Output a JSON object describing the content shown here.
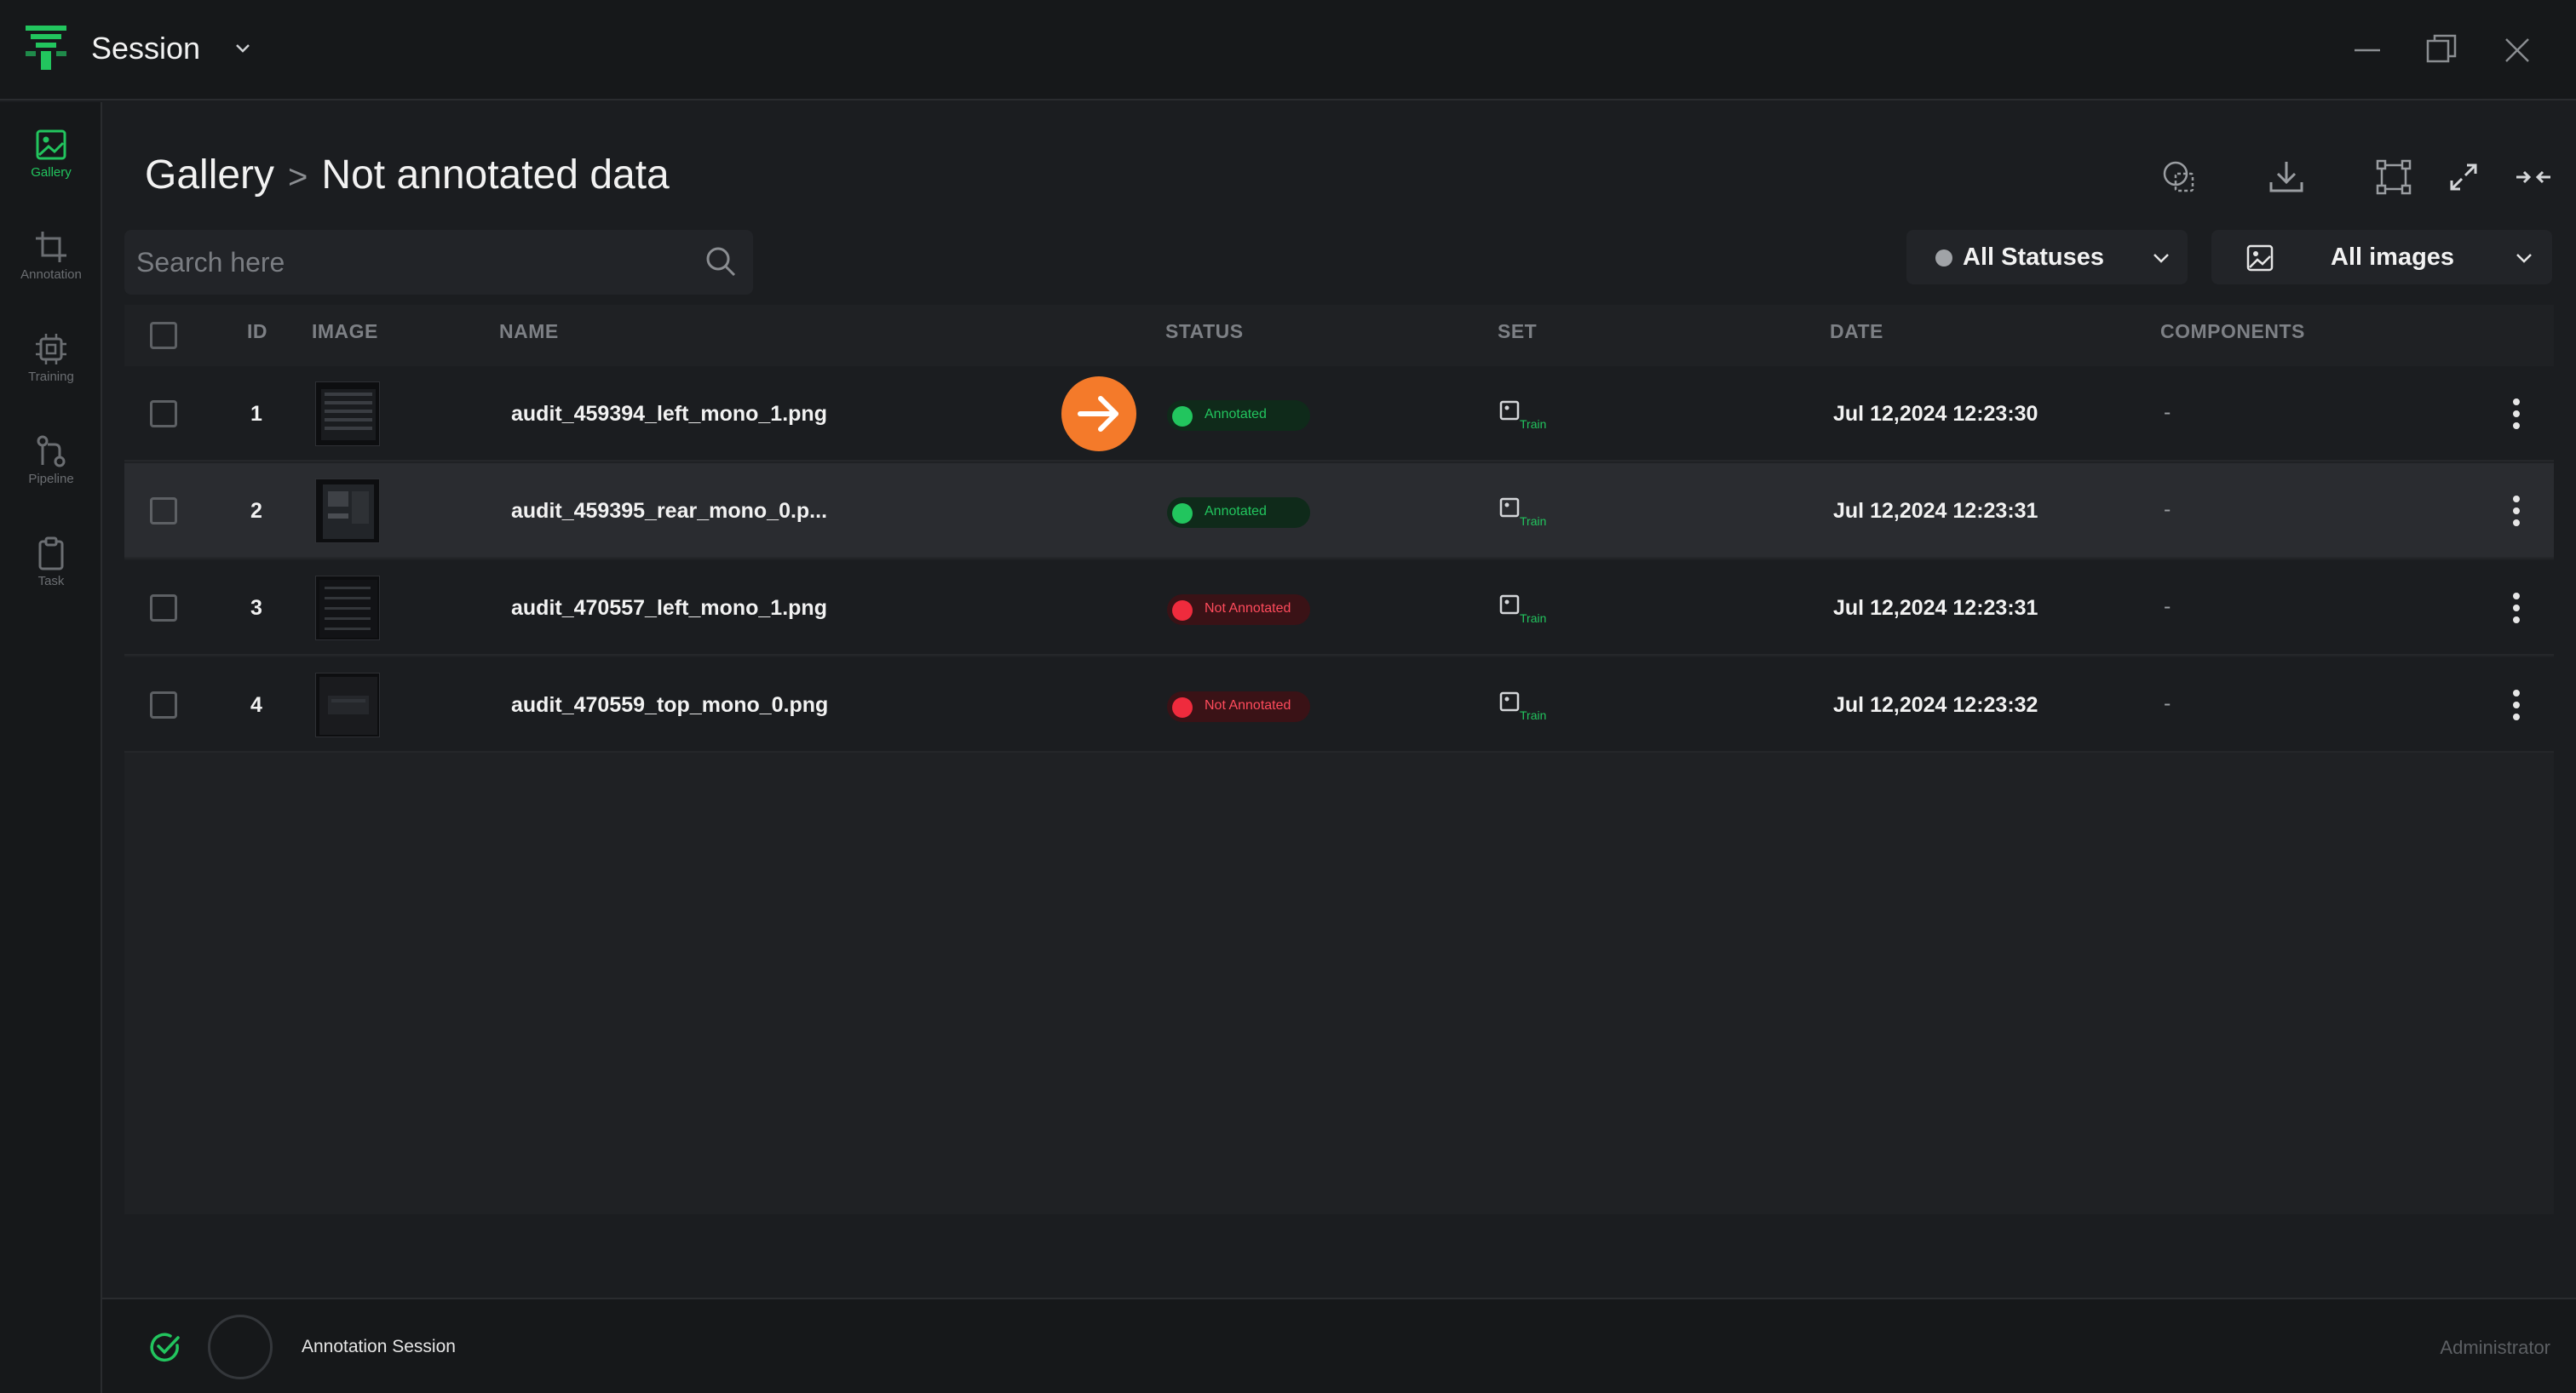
{
  "app": {
    "title": "Session",
    "window_controls": [
      "minimize-icon",
      "restore-icon",
      "close-icon"
    ]
  },
  "sidebar": {
    "items": [
      {
        "label": "Gallery",
        "icon": "image-icon",
        "active": true
      },
      {
        "label": "Annotation",
        "icon": "crop-icon",
        "active": false
      },
      {
        "label": "Training",
        "icon": "chip-icon",
        "active": false
      },
      {
        "label": "Pipeline",
        "icon": "pipeline-icon",
        "active": false
      },
      {
        "label": "Task",
        "icon": "clipboard-icon",
        "active": false
      }
    ]
  },
  "header": {
    "breadcrumb": [
      "Gallery",
      "Not annotated data"
    ],
    "separator": ">",
    "actions": [
      "compare-icon",
      "download-icon",
      "crop-frame-icon",
      "expand-icon",
      "collapse-icon"
    ]
  },
  "search": {
    "placeholder": "Search here",
    "value": ""
  },
  "filters": {
    "status": "All Statuses",
    "images": "All images"
  },
  "table": {
    "columns": [
      "ID",
      "IMAGE",
      "NAME",
      "STATUS",
      "SET",
      "DATE",
      "COMPONENTS"
    ],
    "rows": [
      {
        "id": "1",
        "name": "audit_459394_left_mono_1.png",
        "status": "Annotated",
        "set": "Train",
        "date": "Jul 12,2024 12:23:30",
        "components": "-"
      },
      {
        "id": "2",
        "name": "audit_459395_rear_mono_0.p...",
        "status": "Annotated",
        "set": "Train",
        "date": "Jul 12,2024 12:23:31",
        "components": "-"
      },
      {
        "id": "3",
        "name": "audit_470557_left_mono_1.png",
        "status": "Not Annotated",
        "set": "Train",
        "date": "Jul 12,2024 12:23:31",
        "components": "-"
      },
      {
        "id": "4",
        "name": "audit_470559_top_mono_0.png",
        "status": "Not Annotated",
        "set": "Train",
        "date": "Jul 12,2024 12:23:32",
        "components": "-"
      }
    ]
  },
  "footer": {
    "session_label": "Annotation Session",
    "user": "Administrator"
  },
  "colors": {
    "accent": "#22c55e",
    "danger": "#ef2b3d",
    "highlight": "#f47a2a",
    "background": "#1b1d20"
  }
}
